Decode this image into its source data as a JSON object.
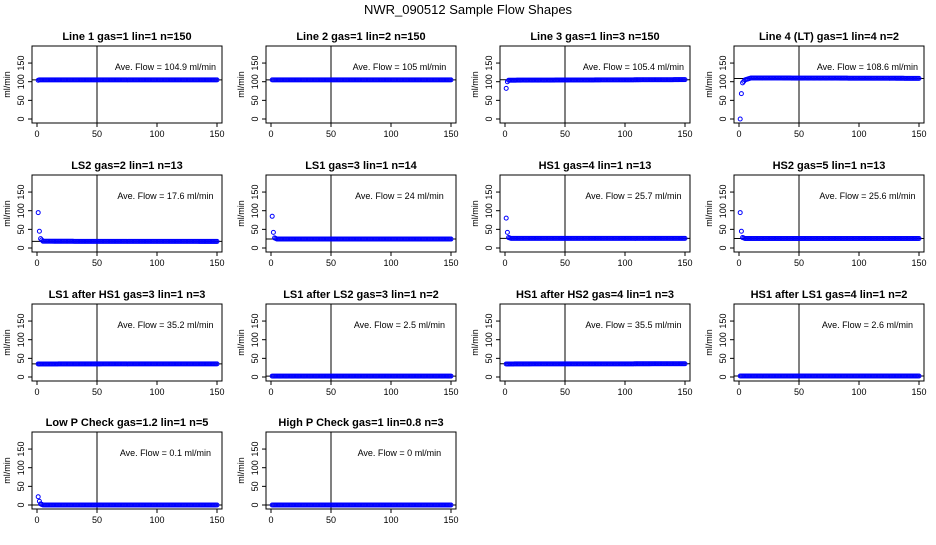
{
  "title": "NWR_090512  Sample Flow Shapes",
  "colors": {
    "points": "#0000ff",
    "axis": "#000000",
    "background": "#ffffff"
  },
  "chart_data": [
    {
      "type": "scatter",
      "title": "Line 1 gas=1 lin=1 n=150",
      "annotation": "Ave. Flow =  104.9  ml/min",
      "ylabel": "ml/min",
      "xlim": [
        0,
        150
      ],
      "ylim": [
        0,
        185
      ],
      "xticks": [
        "0",
        "50",
        "100",
        "150"
      ],
      "yticks": [
        "0",
        "50",
        "100",
        "150"
      ],
      "vline": 50,
      "hline": 104.9,
      "series": [
        {
          "x": [
            1,
            2,
            3,
            4,
            5,
            "...",
            150
          ],
          "y": [
            104,
            104.9,
            104.9,
            104.9,
            104.9,
            "...",
            104.9
          ]
        }
      ],
      "ref_x": 1,
      "ref_y": 104,
      "points": [
        [
          1,
          104
        ],
        [
          2,
          104.9
        ],
        [
          150,
          104.9
        ]
      ],
      "fill": "flat"
    },
    {
      "type": "scatter",
      "title": "Line 2 gas=1 lin=2 n=150",
      "annotation": "Ave. Flow =  105  ml/min",
      "ylabel": "ml/min",
      "xlim": [
        0,
        150
      ],
      "ylim": [
        0,
        185
      ],
      "xticks": [
        "0",
        "50",
        "100",
        "150"
      ],
      "yticks": [
        "0",
        "50",
        "100",
        "150"
      ],
      "vline": 50,
      "hline": 105,
      "points": [
        [
          1,
          105
        ],
        [
          150,
          105
        ]
      ],
      "fill": "flat"
    },
    {
      "type": "scatter",
      "title": "Line 3 gas=1 lin=3 n=150",
      "annotation": "Ave. Flow =  105.4  ml/min",
      "ylabel": "ml/min",
      "xlim": [
        0,
        150
      ],
      "ylim": [
        0,
        185
      ],
      "xticks": [
        "0",
        "50",
        "100",
        "150"
      ],
      "yticks": [
        "0",
        "50",
        "100",
        "150"
      ],
      "vline": 50,
      "hline": 105.4,
      "points": [
        [
          1,
          82
        ],
        [
          2,
          100
        ],
        [
          3,
          104
        ],
        [
          150,
          105.5
        ]
      ],
      "fill": "flat"
    },
    {
      "type": "scatter",
      "title": "Line 4 (LT) gas=1 lin=4 n=2",
      "annotation": "Ave. Flow =  108.6  ml/min",
      "ylabel": "ml/min",
      "xlim": [
        0,
        150
      ],
      "ylim": [
        0,
        185
      ],
      "xticks": [
        "0",
        "50",
        "100",
        "150"
      ],
      "yticks": [
        "0",
        "50",
        "100",
        "150"
      ],
      "vline": 50,
      "hline": 108.6,
      "points": [
        [
          1,
          0
        ],
        [
          2,
          68
        ],
        [
          3,
          97
        ],
        [
          5,
          105
        ],
        [
          10,
          110
        ],
        [
          150,
          109
        ]
      ],
      "fill": "flat"
    },
    {
      "type": "scatter",
      "title": "LS2 gas=2 lin=1 n=13",
      "annotation": "Ave. Flow =  17.6  ml/min",
      "ylabel": "ml/min",
      "xlim": [
        0,
        150
      ],
      "ylim": [
        0,
        185
      ],
      "xticks": [
        "0",
        "50",
        "100",
        "150"
      ],
      "yticks": [
        "0",
        "50",
        "100",
        "150"
      ],
      "vline": 50,
      "hline": 17.6,
      "points": [
        [
          1,
          95
        ],
        [
          2,
          45
        ],
        [
          3,
          25
        ],
        [
          5,
          18
        ],
        [
          150,
          17.6
        ]
      ],
      "fill": "flat"
    },
    {
      "type": "scatter",
      "title": "LS1 gas=3 lin=1 n=14",
      "annotation": "Ave. Flow =  24  ml/min",
      "ylabel": "ml/min",
      "xlim": [
        0,
        150
      ],
      "ylim": [
        0,
        185
      ],
      "xticks": [
        "0",
        "50",
        "100",
        "150"
      ],
      "yticks": [
        "0",
        "50",
        "100",
        "150"
      ],
      "vline": 50,
      "hline": 24,
      "points": [
        [
          1,
          85
        ],
        [
          2,
          42
        ],
        [
          3,
          27
        ],
        [
          5,
          24
        ],
        [
          150,
          24
        ]
      ],
      "fill": "flat"
    },
    {
      "type": "scatter",
      "title": "HS1 gas=4 lin=1 n=13",
      "annotation": "Ave. Flow =  25.7  ml/min",
      "ylabel": "ml/min",
      "xlim": [
        0,
        150
      ],
      "ylim": [
        0,
        185
      ],
      "xticks": [
        "0",
        "50",
        "100",
        "150"
      ],
      "yticks": [
        "0",
        "50",
        "100",
        "150"
      ],
      "vline": 50,
      "hline": 25.7,
      "points": [
        [
          1,
          80
        ],
        [
          2,
          42
        ],
        [
          3,
          28
        ],
        [
          5,
          25.7
        ],
        [
          150,
          25.7
        ]
      ],
      "fill": "flat"
    },
    {
      "type": "scatter",
      "title": "HS2 gas=5 lin=1 n=13",
      "annotation": "Ave. Flow =  25.6  ml/min",
      "ylabel": "ml/min",
      "xlim": [
        0,
        150
      ],
      "ylim": [
        0,
        185
      ],
      "xticks": [
        "0",
        "50",
        "100",
        "150"
      ],
      "yticks": [
        "0",
        "50",
        "100",
        "150"
      ],
      "vline": 50,
      "hline": 25.6,
      "points": [
        [
          1,
          95
        ],
        [
          2,
          45
        ],
        [
          3,
          28
        ],
        [
          5,
          25.6
        ],
        [
          150,
          25.6
        ]
      ],
      "fill": "flat"
    },
    {
      "type": "scatter",
      "title": "LS1 after HS1 gas=3 lin=1 n=3",
      "annotation": "Ave. Flow =  35.2  ml/min",
      "ylabel": "ml/min",
      "xlim": [
        0,
        150
      ],
      "ylim": [
        0,
        185
      ],
      "xticks": [
        "0",
        "50",
        "100",
        "150"
      ],
      "yticks": [
        "0",
        "50",
        "100",
        "150"
      ],
      "vline": 50,
      "hline": 35.2,
      "points": [
        [
          1,
          35
        ],
        [
          150,
          35.2
        ]
      ],
      "fill": "flat"
    },
    {
      "type": "scatter",
      "title": "LS1 after LS2 gas=3 lin=1 n=2",
      "annotation": "Ave. Flow =  2.5  ml/min",
      "ylabel": "ml/min",
      "xlim": [
        0,
        150
      ],
      "ylim": [
        0,
        185
      ],
      "xticks": [
        "0",
        "50",
        "100",
        "150"
      ],
      "yticks": [
        "0",
        "50",
        "100",
        "150"
      ],
      "vline": 50,
      "hline": 2.5,
      "points": [
        [
          1,
          2.5
        ],
        [
          150,
          2.5
        ]
      ],
      "fill": "flat"
    },
    {
      "type": "scatter",
      "title": "HS1 after HS2 gas=4 lin=1 n=3",
      "annotation": "Ave. Flow =  35.5  ml/min",
      "ylabel": "ml/min",
      "xlim": [
        0,
        150
      ],
      "ylim": [
        0,
        185
      ],
      "xticks": [
        "0",
        "50",
        "100",
        "150"
      ],
      "yticks": [
        "0",
        "50",
        "100",
        "150"
      ],
      "vline": 50,
      "hline": 35.5,
      "points": [
        [
          1,
          35
        ],
        [
          150,
          35.5
        ]
      ],
      "fill": "flat"
    },
    {
      "type": "scatter",
      "title": "HS1 after LS1 gas=4 lin=1 n=2",
      "annotation": "Ave. Flow =  2.6  ml/min",
      "ylabel": "ml/min",
      "xlim": [
        0,
        150
      ],
      "ylim": [
        0,
        185
      ],
      "xticks": [
        "0",
        "50",
        "100",
        "150"
      ],
      "yticks": [
        "0",
        "50",
        "100",
        "150"
      ],
      "vline": 50,
      "hline": 2.6,
      "points": [
        [
          1,
          2.6
        ],
        [
          150,
          2.6
        ]
      ],
      "fill": "flat"
    },
    {
      "type": "scatter",
      "title": "Low P Check gas=1.2 lin=1 n=5",
      "annotation": "Ave. Flow =  0.1  ml/min",
      "ylabel": "ml/min",
      "xlim": [
        0,
        150
      ],
      "ylim": [
        0,
        185
      ],
      "xticks": [
        "0",
        "50",
        "100",
        "150"
      ],
      "yticks": [
        "0",
        "50",
        "100",
        "150"
      ],
      "vline": 50,
      "hline": 0.1,
      "points": [
        [
          1,
          22
        ],
        [
          2,
          10
        ],
        [
          3,
          3
        ],
        [
          5,
          0.1
        ],
        [
          150,
          0.1
        ]
      ],
      "fill": "flat"
    },
    {
      "type": "scatter",
      "title": "High P Check gas=1 lin=0.8 n=3",
      "annotation": "Ave. Flow =  0  ml/min",
      "ylabel": "ml/min",
      "xlim": [
        0,
        150
      ],
      "ylim": [
        0,
        185
      ],
      "xticks": [
        "0",
        "50",
        "100",
        "150"
      ],
      "yticks": [
        "0",
        "50",
        "100",
        "150"
      ],
      "vline": 50,
      "hline": 0,
      "points": [
        [
          1,
          0
        ],
        [
          150,
          0
        ]
      ],
      "fill": "flat"
    }
  ]
}
